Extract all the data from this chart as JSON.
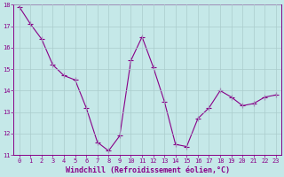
{
  "x": [
    0,
    1,
    2,
    3,
    4,
    5,
    6,
    7,
    8,
    9,
    10,
    11,
    12,
    13,
    14,
    15,
    16,
    17,
    18,
    19,
    20,
    21,
    22,
    23
  ],
  "y": [
    17.9,
    17.1,
    16.4,
    15.2,
    14.7,
    14.5,
    13.2,
    11.6,
    11.2,
    11.9,
    15.4,
    16.5,
    15.1,
    13.5,
    11.5,
    11.4,
    12.7,
    13.2,
    14.0,
    13.7,
    13.3,
    13.4,
    13.7,
    13.8
  ],
  "line_color": "#880088",
  "marker": "+",
  "marker_size": 4,
  "bg_color": "#c5e8e8",
  "grid_color": "#aacccc",
  "xlabel": "Windchill (Refroidissement éolien,°C)",
  "ylim": [
    11,
    18
  ],
  "xlim": [
    -0.5,
    23.5
  ],
  "yticks": [
    11,
    12,
    13,
    14,
    15,
    16,
    17,
    18
  ],
  "xticks": [
    0,
    1,
    2,
    3,
    4,
    5,
    6,
    7,
    8,
    9,
    10,
    11,
    12,
    13,
    14,
    15,
    16,
    17,
    18,
    19,
    20,
    21,
    22,
    23
  ],
  "tick_color": "#880088",
  "label_color": "#880088",
  "tick_fontsize": 5.0,
  "xlabel_fontsize": 6.0,
  "line_width": 0.8,
  "marker_linewidth": 0.8
}
